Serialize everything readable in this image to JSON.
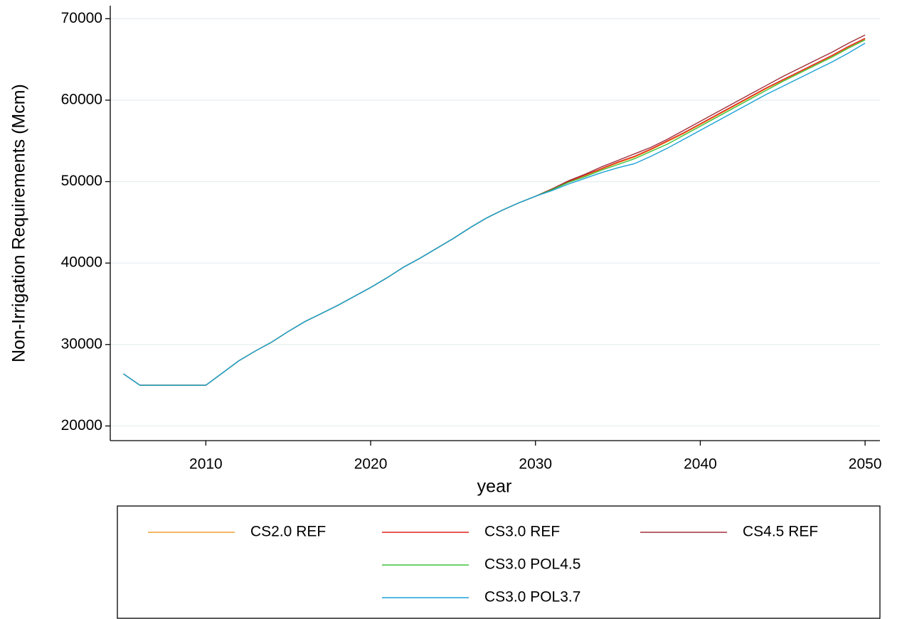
{
  "chart_data": {
    "type": "line",
    "y_label": "Non-Irrigation Requirements (Mcm)",
    "x_label": "year",
    "x": [
      2005,
      2006,
      2007,
      2008,
      2009,
      2010,
      2011,
      2012,
      2013,
      2014,
      2015,
      2016,
      2017,
      2018,
      2019,
      2020,
      2021,
      2022,
      2023,
      2024,
      2025,
      2026,
      2027,
      2028,
      2029,
      2030,
      2031,
      2032,
      2033,
      2034,
      2035,
      2036,
      2037,
      2038,
      2039,
      2040,
      2041,
      2042,
      2043,
      2044,
      2045,
      2046,
      2047,
      2048,
      2049,
      2050
    ],
    "series": [
      {
        "name": "CS2.0 REF",
        "color": "#f0a030",
        "values": [
          26400,
          25000,
          25000,
          25000,
          25000,
          25000,
          26500,
          28000,
          29200,
          30300,
          31600,
          32800,
          33800,
          34800,
          35900,
          37000,
          38200,
          39500,
          40600,
          41800,
          43000,
          44300,
          45500,
          46500,
          47400,
          48200,
          49000,
          49900,
          50700,
          51500,
          52300,
          53000,
          53900,
          54900,
          55900,
          57000,
          58100,
          59200,
          60300,
          61400,
          62400,
          63400,
          64400,
          65400,
          66500,
          67500
        ]
      },
      {
        "name": "CS3.0 REF",
        "color": "#e0201b",
        "values": [
          26400,
          25000,
          25000,
          25000,
          25000,
          25000,
          26500,
          28000,
          29200,
          30300,
          31600,
          32800,
          33800,
          34800,
          35900,
          37000,
          38200,
          39500,
          40600,
          41800,
          43000,
          44300,
          45500,
          46500,
          47400,
          48200,
          49100,
          50000,
          50800,
          51600,
          52400,
          53100,
          54000,
          55000,
          56000,
          57100,
          58200,
          59300,
          60400,
          61500,
          62500,
          63500,
          64500,
          65500,
          66600,
          67600
        ]
      },
      {
        "name": "CS4.5 REF",
        "color": "#a0303a",
        "values": [
          26400,
          25000,
          25000,
          25000,
          25000,
          25000,
          26500,
          28000,
          29200,
          30300,
          31600,
          32800,
          33800,
          34800,
          35900,
          37000,
          38200,
          39500,
          40600,
          41800,
          43000,
          44300,
          45500,
          46500,
          47400,
          48200,
          49100,
          50100,
          50900,
          51800,
          52600,
          53400,
          54200,
          55200,
          56300,
          57400,
          58500,
          59600,
          60700,
          61800,
          62900,
          63900,
          64900,
          65900,
          67000,
          68000
        ]
      },
      {
        "name": "CS3.0 POL4.5",
        "color": "#3cc23c",
        "values": [
          26400,
          25000,
          25000,
          25000,
          25000,
          25000,
          26500,
          28000,
          29200,
          30300,
          31600,
          32800,
          33800,
          34800,
          35900,
          37000,
          38200,
          39500,
          40600,
          41800,
          43000,
          44300,
          45500,
          46500,
          47400,
          48200,
          49000,
          49900,
          50600,
          51400,
          52100,
          52800,
          53700,
          54600,
          55700,
          56800,
          57900,
          59000,
          60100,
          61200,
          62300,
          63300,
          64300,
          65300,
          66400,
          67400
        ]
      },
      {
        "name": "CS3.0 POL3.7",
        "color": "#1ba1d6",
        "values": [
          26400,
          25000,
          25000,
          25000,
          25000,
          25000,
          26500,
          28000,
          29200,
          30300,
          31600,
          32800,
          33800,
          34800,
          35900,
          37000,
          38200,
          39500,
          40600,
          41800,
          43000,
          44300,
          45500,
          46500,
          47400,
          48200,
          48900,
          49700,
          50400,
          51100,
          51700,
          52200,
          53100,
          54100,
          55200,
          56300,
          57400,
          58500,
          59600,
          60700,
          61700,
          62700,
          63700,
          64700,
          65800,
          67000
        ]
      }
    ],
    "xlim": [
      2004.2,
      2050.9
    ],
    "xticks": [
      2010,
      2020,
      2030,
      2040,
      2050
    ],
    "ylim": [
      18200,
      71600
    ],
    "yticks": [
      20000,
      30000,
      40000,
      50000,
      60000,
      70000
    ],
    "grid": true
  }
}
